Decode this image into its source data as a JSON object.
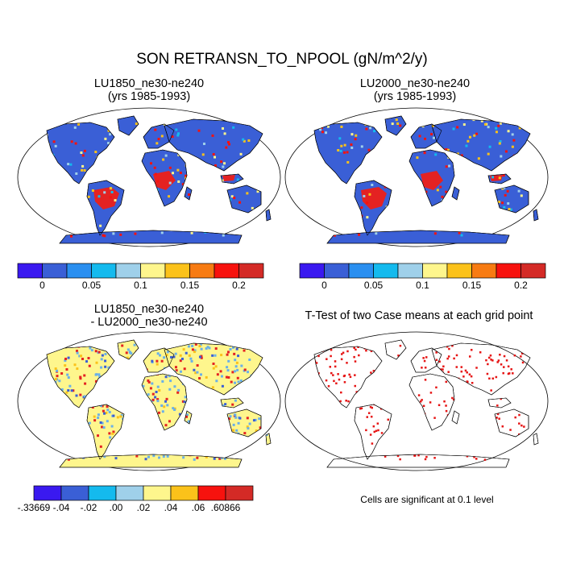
{
  "figure": {
    "title": "SON RETRANSN_TO_NPOOL (gN/m^2/y)"
  },
  "panels": [
    {
      "id": "p1",
      "title_lines": [
        "LU1850_ne30-ne240",
        "(yrs 1985-1993)"
      ]
    },
    {
      "id": "p2",
      "title_lines": [
        "LU2000_ne30-ne240",
        "(yrs 1985-1993)"
      ]
    },
    {
      "id": "p3",
      "title_lines": [
        "LU1850_ne30-ne240",
        "- LU2000_ne30-ne240"
      ]
    },
    {
      "id": "p4",
      "title_lines": [
        "T-Test of two Case means at each grid point"
      ],
      "note": "Cells are significant at 0.1 level"
    }
  ],
  "colorbars": {
    "case": {
      "colors": [
        "#3a19f0",
        "#3a5fd6",
        "#2a8ff0",
        "#14baee",
        "#9fd0ea",
        "#fef68d",
        "#fbc21a",
        "#f77b12",
        "#f7120e",
        "#d42a26"
      ],
      "tick_labels": [
        "0",
        "0.05",
        "0.1",
        "0.15",
        "0.2"
      ]
    },
    "diff": {
      "colors": [
        "#3a19f0",
        "#3a5fd6",
        "#14baee",
        "#9fd0ea",
        "#fef68d",
        "#fbc21a",
        "#f7120e",
        "#d42a26"
      ],
      "tick_labels": [
        "-.33669",
        "-.04",
        "-.02",
        ".00",
        ".02",
        ".04",
        ".06",
        ".60866"
      ]
    }
  },
  "colors": {
    "ocean": "#ffffff",
    "outline": "#000000",
    "case_land": "#3a5fd6",
    "case_high": "#e42222",
    "diff_land": "#fef68d",
    "diff_neg": "#6ab0e8",
    "diff_pos": "#e42222",
    "signif": "#e61414"
  }
}
